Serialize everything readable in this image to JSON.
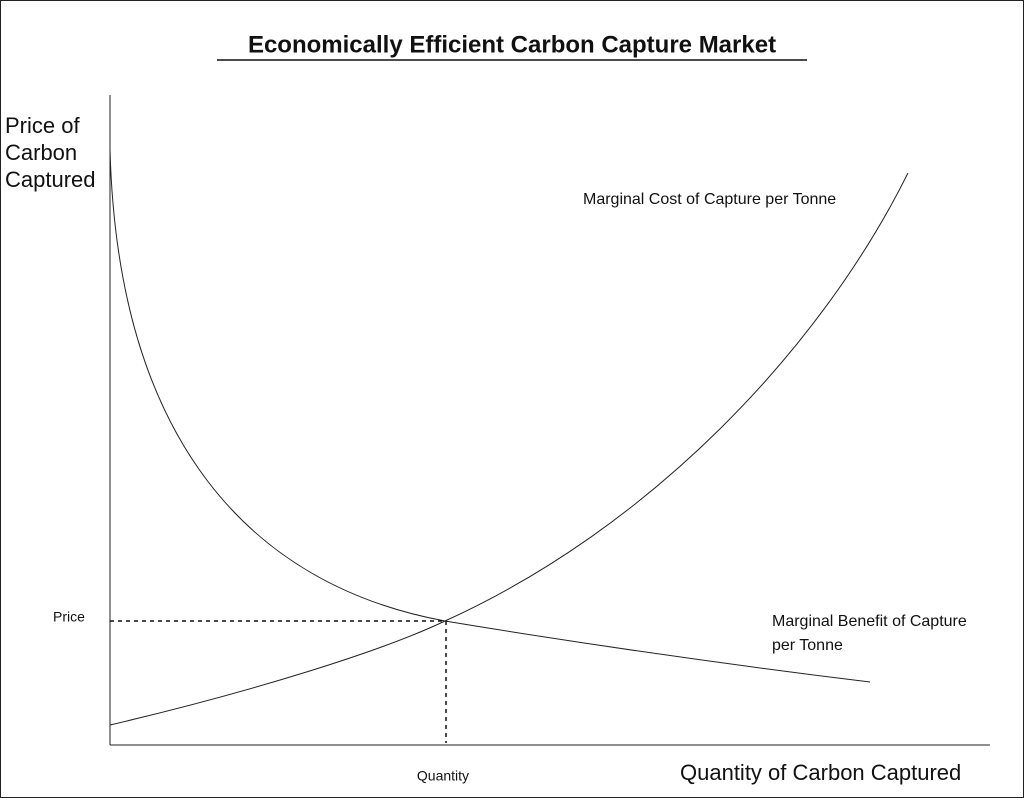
{
  "title": "Economically Efficient Carbon Capture Market",
  "y_axis_label": [
    "Price of",
    "Carbon",
    "Captured"
  ],
  "x_axis_label": "Quantity of Carbon Captured",
  "curves": {
    "marginal_cost": "Marginal Cost of Capture per Tonne",
    "marginal_benefit": [
      "Marginal Benefit of Capture",
      "per Tonne"
    ]
  },
  "equilibrium": {
    "price": "Price",
    "quantity": "Quantity"
  }
}
